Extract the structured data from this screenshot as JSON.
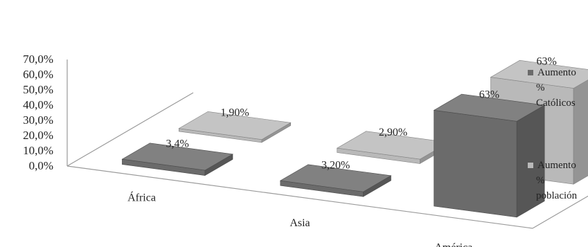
{
  "chart_data": {
    "type": "bar",
    "title": "",
    "xlabel": "",
    "ylabel": "",
    "categories": [
      "África",
      "Asia",
      "América"
    ],
    "ylim": [
      0,
      70
    ],
    "y_ticks": [
      "0,0%",
      "10,0%",
      "20,0%",
      "30,0%",
      "40,0%",
      "50,0%",
      "60,0%",
      "70,0%"
    ],
    "legend_position": "right",
    "grid": false,
    "style": "3d-column",
    "series": [
      {
        "name": "Aumento % Católicos",
        "legend_lines": [
          "Aumento",
          "%",
          "Católicos"
        ],
        "color": "#6b6b6b",
        "values": [
          3.4,
          3.2,
          63
        ],
        "labels": [
          "3,4%",
          "3,20%",
          "63%"
        ]
      },
      {
        "name": "Aumento % población",
        "legend_lines": [
          "Aumento",
          "%",
          "población"
        ],
        "color": "#b9b9b9",
        "values": [
          1.9,
          2.9,
          63
        ],
        "labels": [
          "1,90%",
          "2,90%",
          "63%"
        ]
      }
    ]
  }
}
